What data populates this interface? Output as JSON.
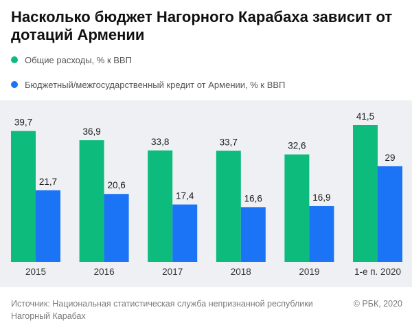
{
  "chart_data": {
    "type": "bar",
    "title": "Насколько бюджет Нагорного Карабаха зависит от дотаций Армении",
    "categories": [
      "2015",
      "2016",
      "2017",
      "2018",
      "2019",
      "1-е п. 2020"
    ],
    "series": [
      {
        "name": "Общие расходы, % к ВВП",
        "color": "#0dbb7c",
        "values": [
          39.7,
          36.9,
          33.8,
          33.7,
          32.6,
          41.5
        ],
        "labels": [
          "39,7",
          "36,9",
          "33,8",
          "33,7",
          "32,6",
          "41,5"
        ]
      },
      {
        "name": "Бюджетный/межгосударственный кредит от Армении, % к ВВП",
        "color": "#1a74f5",
        "values": [
          21.7,
          20.6,
          17.4,
          16.6,
          16.9,
          29
        ],
        "labels": [
          "21,7",
          "20,6",
          "17,4",
          "16,6",
          "16,9",
          "29"
        ]
      }
    ],
    "ylim": [
      0,
      41.5
    ],
    "grid": false,
    "legend_position": "top-left"
  },
  "footer": {
    "source": "Источник: Национальная статистическая служба непризнанной республики Нагорный Карабах",
    "copyright": "© РБК, 2020"
  }
}
